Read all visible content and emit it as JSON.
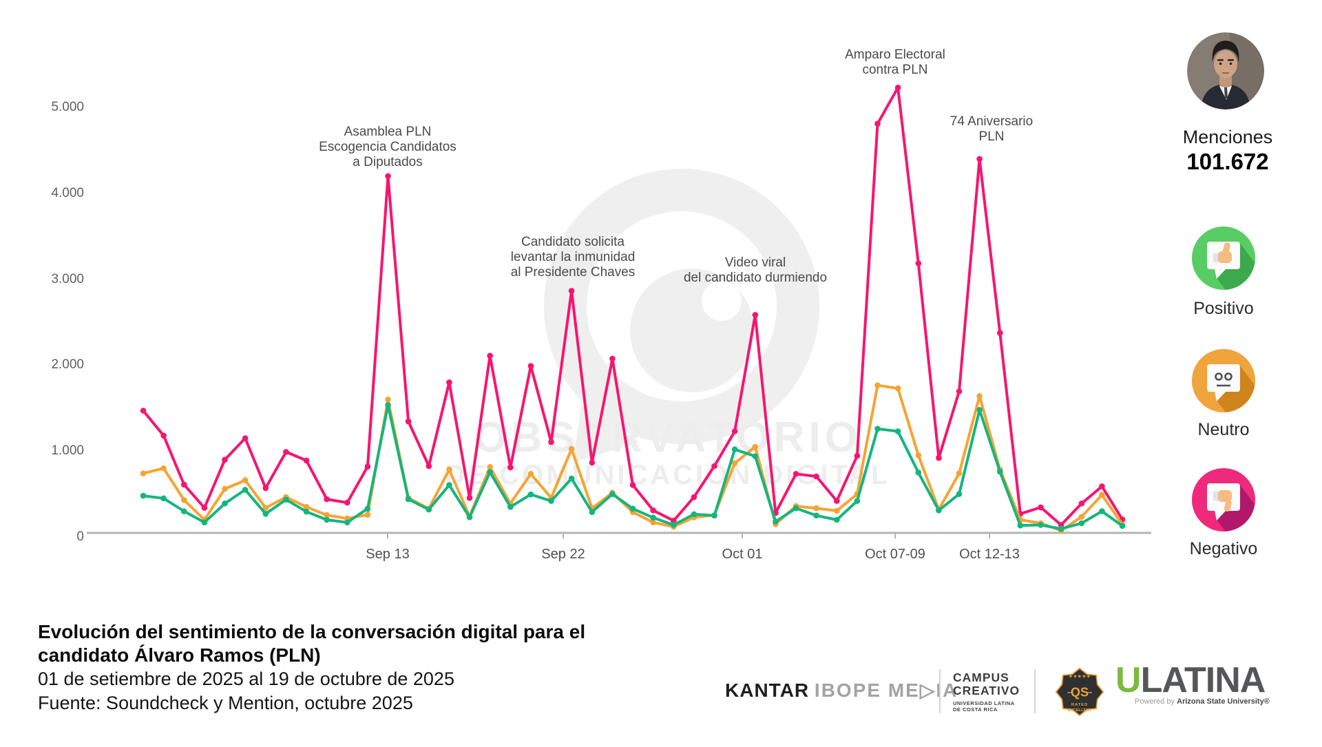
{
  "watermark": {
    "line1": "OBSERVATORIO",
    "line2": "DE COMUNICACIÓN DIGITAL"
  },
  "sidebar": {
    "mentions_label": "Menciones",
    "mentions_value": "101.672",
    "sentiments": [
      {
        "label": "Positivo",
        "color": "#57cd63",
        "shadow": "#3ba94c"
      },
      {
        "label": "Neutro",
        "color": "#f0a43c",
        "shadow": "#d0841c"
      },
      {
        "label": "Negativo",
        "color": "#ef2a7b",
        "shadow": "#b2186a"
      }
    ]
  },
  "footer": {
    "title_line1": "Evolución del sentimiento de la conversación digital para el",
    "title_line2": "candidato Álvaro Ramos (PLN)",
    "subtitle": "01 de setiembre de 2025 al 19 de octubre de 2025",
    "source": "Fuente: Soundcheck y Mention, octubre 2025",
    "logos": {
      "kantar_bold": "KANTAR",
      "kantar_rest": "IBOPE ME▷IA",
      "campus_line1": "CAMPUS",
      "campus_line2": "CREATIVO",
      "campus_sub1": "UNIVERSIDAD LATINA",
      "campus_sub2": "DE COSTA RICA",
      "qs_stars": "★★★★★",
      "qs_text": "QS",
      "qs_sub1": "RATED",
      "qs_sub2": "EXCELLENT",
      "ulatina_u": "U",
      "ulatina_rest": "LATINA",
      "powered_prefix": "Powered by ",
      "powered_bold": "Arizona State University®"
    }
  },
  "chart_data": {
    "type": "line",
    "title": "Evolución del sentimiento de la conversación digital para el candidato Álvaro Ramos (PLN)",
    "xlabel": "",
    "ylabel": "",
    "ylim": [
      0,
      5600
    ],
    "grid": false,
    "legend_position": "right-icons",
    "total_mentions": "101.672",
    "y_tick_labels": [
      "5.000",
      "4.000",
      "3.000",
      "2.000",
      "1.000",
      "0"
    ],
    "y_tick_values": [
      5000,
      4000,
      3000,
      2000,
      1000,
      0
    ],
    "x_ticks": [
      {
        "label": "Sep 13"
      },
      {
        "label": "Sep 22"
      },
      {
        "label": "Oct 01"
      },
      {
        "label": "Oct 07-09"
      },
      {
        "label": "Oct 12-13"
      }
    ],
    "annotations": [
      {
        "text": "Asamblea PLN\nEscogencia Candidatos\na Diputados"
      },
      {
        "text": "Candidato solicita\nlevantar la inmunidad\nal Presidente Chaves"
      },
      {
        "text": "Video viral\ndel candidato durmiendo"
      },
      {
        "text": "Amparo Electoral\ncontra PLN"
      },
      {
        "text": "74 Aniversario\nPLN"
      }
    ],
    "x": [
      "Sep 01",
      "Sep 02",
      "Sep 03",
      "Sep 04",
      "Sep 05",
      "Sep 06",
      "Sep 07",
      "Sep 08",
      "Sep 09",
      "Sep 10",
      "Sep 11",
      "Sep 12",
      "Sep 13",
      "Sep 14",
      "Sep 15",
      "Sep 16",
      "Sep 17",
      "Sep 18",
      "Sep 19",
      "Sep 20",
      "Sep 21",
      "Sep 22",
      "Sep 23",
      "Sep 24",
      "Sep 25",
      "Sep 26",
      "Sep 27",
      "Sep 28",
      "Sep 29",
      "Sep 30",
      "Oct 01",
      "Oct 02",
      "Oct 03",
      "Oct 04",
      "Oct 05",
      "Oct 06",
      "Oct 07",
      "Oct 08",
      "Oct 09",
      "Oct 10",
      "Oct 11",
      "Oct 12",
      "Oct 13",
      "Oct 14",
      "Oct 15",
      "Oct 16",
      "Oct 17",
      "Oct 18",
      "Oct 19"
    ],
    "series": [
      {
        "name": "Negativo",
        "color": "#f7156f",
        "values": [
          1470,
          1180,
          610,
          340,
          900,
          1150,
          570,
          990,
          890,
          440,
          400,
          820,
          4200,
          1345,
          825,
          1800,
          455,
          2110,
          810,
          1990,
          1105,
          2865,
          865,
          2075,
          605,
          310,
          190,
          465,
          825,
          1230,
          2585,
          280,
          735,
          705,
          420,
          945,
          4810,
          5230,
          3185,
          920,
          1695,
          4400,
          2375,
          270,
          345,
          140,
          390,
          590,
          205
        ]
      },
      {
        "name": "Neutro",
        "color": "#f5a433",
        "values": [
          740,
          800,
          430,
          200,
          560,
          660,
          340,
          465,
          350,
          255,
          215,
          260,
          1600,
          455,
          330,
          785,
          240,
          815,
          390,
          735,
          455,
          1025,
          335,
          515,
          290,
          170,
          120,
          230,
          255,
          860,
          1050,
          150,
          360,
          335,
          305,
          500,
          1765,
          1730,
          950,
          320,
          740,
          1640,
          785,
          200,
          160,
          75,
          235,
          490,
          145
        ]
      },
      {
        "name": "Positivo",
        "color": "#14b57f",
        "values": [
          480,
          450,
          300,
          170,
          390,
          550,
          270,
          435,
          295,
          200,
          170,
          330,
          1535,
          440,
          320,
          605,
          230,
          755,
          350,
          495,
          420,
          680,
          290,
          500,
          330,
          225,
          140,
          265,
          250,
          1020,
          940,
          180,
          335,
          250,
          200,
          420,
          1260,
          1230,
          750,
          310,
          500,
          1480,
          760,
          135,
          140,
          95,
          160,
          300,
          130
        ]
      }
    ]
  }
}
